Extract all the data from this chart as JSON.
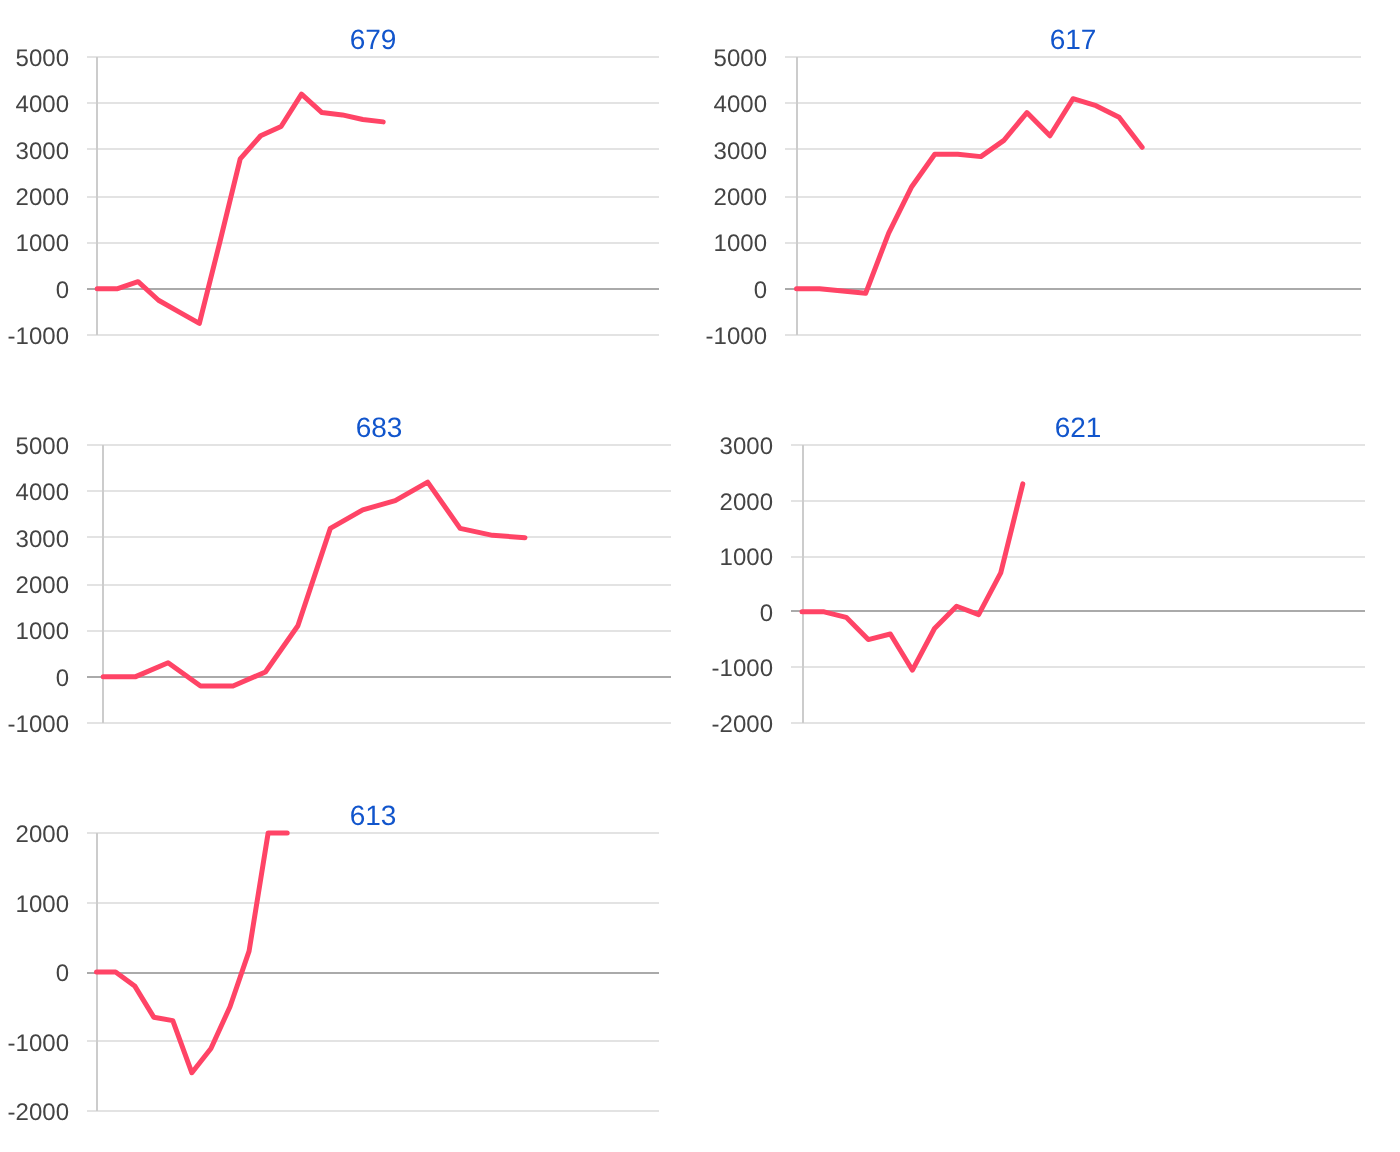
{
  "chart_data": [
    {
      "type": "line",
      "title": "679",
      "categories": [
        null,
        null,
        null,
        null,
        null,
        null,
        null,
        null,
        null,
        null,
        null,
        null,
        null,
        null,
        null,
        null,
        null,
        null,
        null,
        null,
        null,
        null,
        null,
        null,
        null,
        null,
        null,
        null
      ],
      "values": [
        0,
        0,
        150,
        -250,
        -500,
        -750,
        1000,
        2800,
        3300,
        3500,
        4200,
        3800,
        3750,
        3650,
        3600,
        null,
        null,
        null,
        null,
        null,
        null,
        null,
        null,
        null,
        null,
        null,
        null,
        null
      ],
      "color": "#ff4466",
      "ylim": [
        -1000,
        5000
      ],
      "yticks": [
        -1000,
        0,
        1000,
        2000,
        3000,
        4000,
        5000
      ],
      "grid": "y",
      "tick_labels": "y"
    },
    {
      "type": "line",
      "title": "617",
      "categories": [
        null,
        null,
        null,
        null,
        null,
        null,
        null,
        null,
        null,
        null,
        null,
        null,
        null,
        null,
        null,
        null,
        null,
        null,
        null,
        null,
        null,
        null,
        null,
        null,
        null
      ],
      "values": [
        0,
        0,
        -50,
        -100,
        1200,
        2200,
        2900,
        2900,
        2850,
        3200,
        3800,
        3300,
        4100,
        3950,
        3700,
        3050,
        null,
        null,
        null,
        null,
        null,
        null,
        null,
        null,
        null
      ],
      "color": "#ff4466",
      "ylim": [
        -1000,
        5000
      ],
      "yticks": [
        -1000,
        0,
        1000,
        2000,
        3000,
        4000,
        5000
      ],
      "grid": "y",
      "tick_labels": "y"
    },
    {
      "type": "line",
      "title": "683",
      "categories": [
        null,
        null,
        null,
        null,
        null,
        null,
        null,
        null,
        null,
        null,
        null,
        null,
        null,
        null,
        null,
        null,
        null,
        null
      ],
      "values": [
        0,
        0,
        300,
        -200,
        -200,
        100,
        1100,
        3200,
        3600,
        3800,
        4200,
        3200,
        3050,
        3000,
        null,
        null,
        null,
        null
      ],
      "color": "#ff4466",
      "ylim": [
        -1000,
        5000
      ],
      "yticks": [
        -1000,
        0,
        1000,
        2000,
        3000,
        4000,
        5000
      ],
      "grid": "y",
      "tick_labels": "y"
    },
    {
      "type": "line",
      "title": "621",
      "categories": [
        null,
        null,
        null,
        null,
        null,
        null,
        null,
        null,
        null,
        null,
        null,
        null,
        null,
        null,
        null,
        null,
        null,
        null,
        null,
        null,
        null,
        null,
        null,
        null,
        null,
        null
      ],
      "values": [
        0,
        0,
        -100,
        -500,
        -400,
        -1050,
        -300,
        100,
        -50,
        700,
        2300,
        null,
        null,
        null,
        null,
        null,
        null,
        null,
        null,
        null,
        null,
        null,
        null,
        null,
        null,
        null
      ],
      "color": "#ff4466",
      "ylim": [
        -2000,
        3000
      ],
      "yticks": [
        -2000,
        -1000,
        0,
        1000,
        2000,
        3000
      ],
      "grid": "y",
      "tick_labels": "y"
    },
    {
      "type": "line",
      "title": "613",
      "categories": [
        null,
        null,
        null,
        null,
        null,
        null,
        null,
        null,
        null,
        null,
        null,
        null,
        null,
        null,
        null,
        null,
        null,
        null,
        null,
        null,
        null,
        null,
        null,
        null,
        null,
        null,
        null,
        null,
        null,
        null
      ],
      "values": [
        0,
        0,
        -200,
        -650,
        -700,
        -1450,
        -1100,
        -500,
        300,
        2000,
        2000,
        null,
        null,
        null,
        null,
        null,
        null,
        null,
        null,
        null,
        null,
        null,
        null,
        null,
        null,
        null,
        null,
        null,
        null,
        null
      ],
      "color": "#ff4466",
      "ylim": [
        -2000,
        2000
      ],
      "yticks": [
        -2000,
        -1000,
        0,
        1000,
        2000
      ],
      "grid": "y",
      "tick_labels": "y"
    }
  ]
}
